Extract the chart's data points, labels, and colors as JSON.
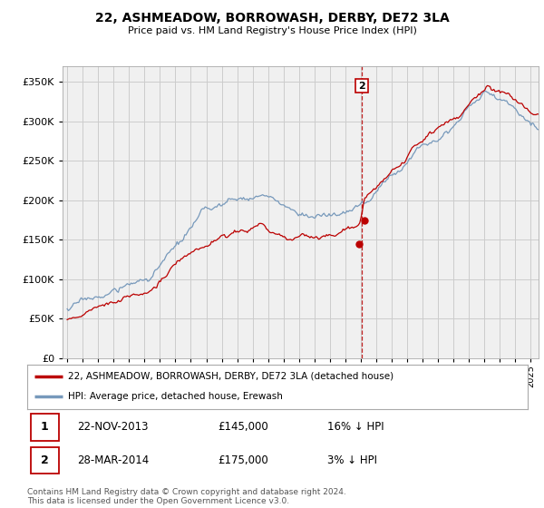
{
  "title": "22, ASHMEADOW, BORROWASH, DERBY, DE72 3LA",
  "subtitle": "Price paid vs. HM Land Registry's House Price Index (HPI)",
  "legend_line1": "22, ASHMEADOW, BORROWASH, DERBY, DE72 3LA (detached house)",
  "legend_line2": "HPI: Average price, detached house, Erewash",
  "footnote": "Contains HM Land Registry data © Crown copyright and database right 2024.\nThis data is licensed under the Open Government Licence v3.0.",
  "transactions": [
    {
      "label": "1",
      "date": "22-NOV-2013",
      "price": 145000,
      "pct": "16%",
      "direction": "↓",
      "x_year": 2013.89
    },
    {
      "label": "2",
      "date": "28-MAR-2014",
      "price": 175000,
      "pct": "3%",
      "direction": "↓",
      "x_year": 2014.23
    }
  ],
  "red_color": "#bb0000",
  "blue_color": "#7799bb",
  "grid_color": "#cccccc",
  "background_color": "#ffffff",
  "plot_bg_color": "#f0f0f0",
  "ylim": [
    0,
    370000
  ],
  "xlim_start": 1994.7,
  "xlim_end": 2025.5,
  "yticks": [
    0,
    50000,
    100000,
    150000,
    200000,
    250000,
    300000,
    350000
  ],
  "xticks": [
    1995,
    1996,
    1997,
    1998,
    1999,
    2000,
    2001,
    2002,
    2003,
    2004,
    2005,
    2006,
    2007,
    2008,
    2009,
    2010,
    2011,
    2012,
    2013,
    2014,
    2015,
    2016,
    2017,
    2018,
    2019,
    2020,
    2021,
    2022,
    2023,
    2024,
    2025
  ]
}
